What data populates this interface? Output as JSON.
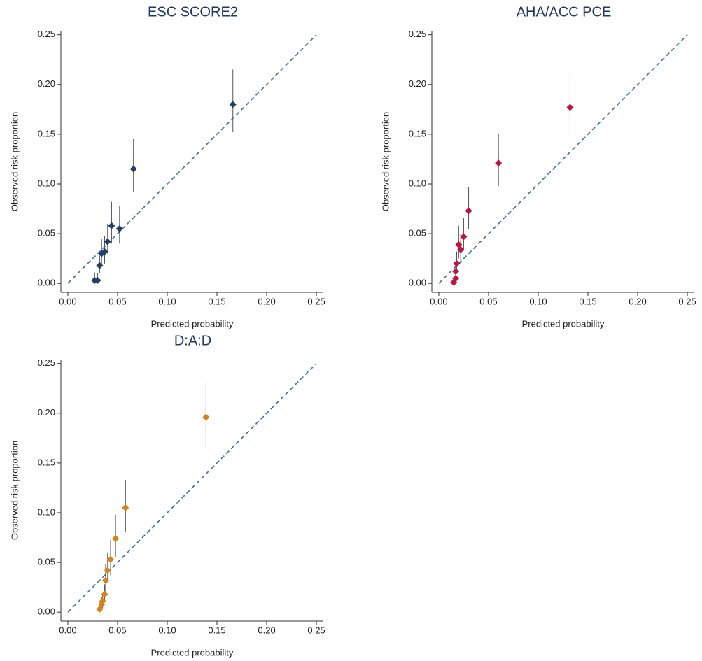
{
  "chart_data": [
    {
      "type": "scatter",
      "title": "ESC SCORE2",
      "x_label": "Predicted probability",
      "y_label": "Observed risk proportion",
      "xlim": [
        -0.007,
        0.257
      ],
      "ylim": [
        -0.009,
        0.254
      ],
      "xticks": [
        {
          "value": 0,
          "label": "0.00"
        },
        0.05,
        {
          "value": 0.1,
          "label": "0.10"
        },
        0.15,
        {
          "value": 0.2,
          "label": "0.20"
        },
        0.25
      ],
      "yticks": [
        {
          "value": 0,
          "label": "0.00"
        },
        0.05,
        {
          "value": 0.1,
          "label": "0.10"
        },
        0.15,
        {
          "value": 0.2,
          "label": "0.20"
        },
        0.25
      ],
      "identity_line": true,
      "identity_color": "#3f6f9f",
      "series": [
        {
          "color": "#1f4068",
          "x": [
            0.027,
            0.03,
            0.032,
            0.034,
            0.037,
            0.04,
            0.044,
            0.052,
            0.066,
            0.166
          ],
          "values": [
            0.003,
            0.003,
            0.018,
            0.03,
            0.032,
            0.042,
            0.058,
            0.055,
            0.115,
            0.18
          ],
          "ci_low": [
            0.0,
            0.0,
            0.01,
            0.018,
            0.02,
            0.03,
            0.04,
            0.04,
            0.092,
            0.152
          ],
          "ci_high": [
            0.011,
            0.01,
            0.028,
            0.045,
            0.048,
            0.06,
            0.082,
            0.078,
            0.145,
            0.215
          ]
        }
      ]
    },
    {
      "type": "scatter",
      "title": "AHA/ACC PCE",
      "x_label": "Predicted probability",
      "y_label": "Observed risk proportion",
      "xlim": [
        -0.007,
        0.257
      ],
      "ylim": [
        -0.009,
        0.254
      ],
      "xticks": [
        {
          "value": 0,
          "label": "0.00"
        },
        0.05,
        {
          "value": 0.1,
          "label": "0.10"
        },
        0.15,
        {
          "value": 0.2,
          "label": "0.20"
        },
        0.25
      ],
      "yticks": [
        {
          "value": 0,
          "label": "0.00"
        },
        0.05,
        {
          "value": 0.1,
          "label": "0.10"
        },
        0.15,
        {
          "value": 0.2,
          "label": "0.20"
        },
        0.25
      ],
      "identity_line": true,
      "identity_color": "#3f6f9f",
      "series": [
        {
          "color": "#c0143c",
          "x": [
            0.015,
            0.017,
            0.017,
            0.018,
            0.02,
            0.022,
            0.025,
            0.03,
            0.06,
            0.132
          ],
          "values": [
            0.001,
            0.005,
            0.012,
            0.02,
            0.039,
            0.034,
            0.047,
            0.073,
            0.121,
            0.177
          ],
          "ci_low": [
            0.0,
            0.0,
            0.005,
            0.01,
            0.025,
            0.02,
            0.033,
            0.055,
            0.098,
            0.148
          ],
          "ci_high": [
            0.006,
            0.012,
            0.02,
            0.032,
            0.058,
            0.05,
            0.066,
            0.097,
            0.15,
            0.21
          ]
        }
      ]
    },
    {
      "type": "scatter",
      "title": "D:A:D",
      "x_label": "Predicted probability",
      "y_label": "Observed risk proportion",
      "xlim": [
        -0.007,
        0.257
      ],
      "ylim": [
        -0.009,
        0.254
      ],
      "xticks": [
        {
          "value": 0,
          "label": "0.00"
        },
        0.05,
        {
          "value": 0.1,
          "label": "0.10"
        },
        0.15,
        {
          "value": 0.2,
          "label": "0.20"
        },
        0.25
      ],
      "yticks": [
        {
          "value": 0,
          "label": "0.00"
        },
        0.05,
        {
          "value": 0.1,
          "label": "0.10"
        },
        0.15,
        {
          "value": 0.2,
          "label": "0.20"
        },
        0.25
      ],
      "identity_line": true,
      "identity_color": "#3f6f9f",
      "series": [
        {
          "color": "#d9821a",
          "x": [
            0.032,
            0.034,
            0.035,
            0.037,
            0.038,
            0.04,
            0.043,
            0.048,
            0.058,
            0.139
          ],
          "values": [
            0.003,
            0.008,
            0.011,
            0.018,
            0.032,
            0.042,
            0.053,
            0.074,
            0.105,
            0.196
          ],
          "ci_low": [
            0.0,
            0.002,
            0.004,
            0.01,
            0.02,
            0.03,
            0.037,
            0.055,
            0.081,
            0.165
          ],
          "ci_high": [
            0.008,
            0.015,
            0.019,
            0.028,
            0.048,
            0.06,
            0.073,
            0.098,
            0.133,
            0.231
          ]
        }
      ]
    }
  ]
}
